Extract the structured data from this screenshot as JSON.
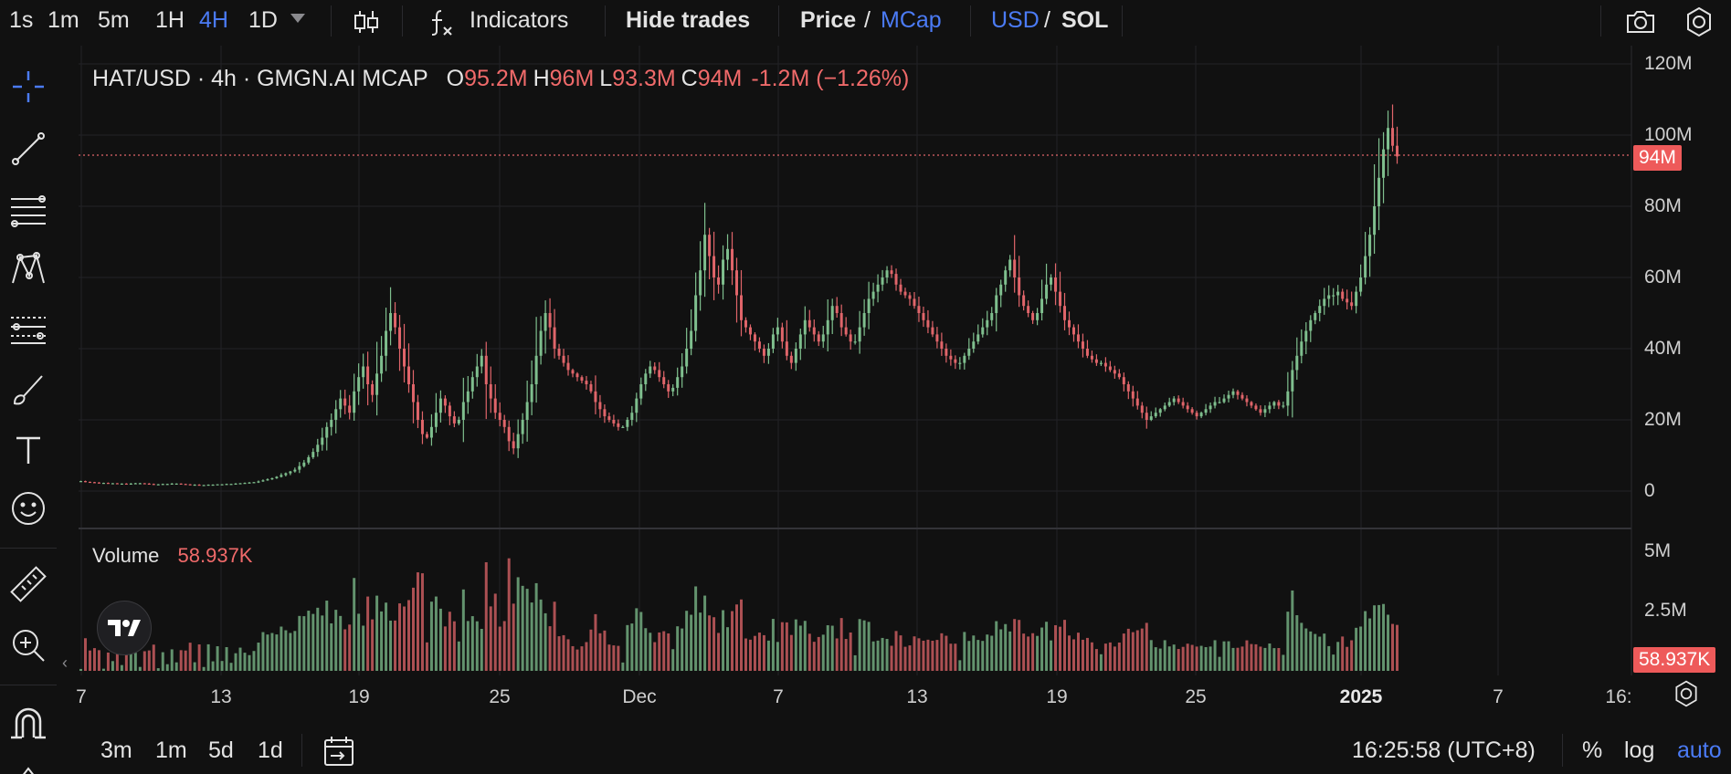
{
  "toolbar": {
    "intervals": [
      "1s",
      "1m",
      "5m",
      "1H",
      "4H",
      "1D"
    ],
    "active_interval": "4H",
    "indicators_label": "Indicators",
    "hide_trades_label": "Hide trades",
    "price_label": "Price",
    "slash": "/",
    "mcap_label": "MCap",
    "usd_label": "USD",
    "sol_label": "SOL"
  },
  "legend": {
    "symbol": "HAT/USD · 4h · GMGN.AI MCAP",
    "o_key": "O",
    "o_val": "95.2M",
    "h_key": "H",
    "h_val": "96M",
    "l_key": "L",
    "l_val": "93.3M",
    "c_key": "C",
    "c_val": "94M",
    "change": "-1.2M (−1.26%)"
  },
  "volume_legend": {
    "label": "Volume",
    "value": "58.937K"
  },
  "price_axis": {
    "labels": [
      "120M",
      "100M",
      "80M",
      "60M",
      "40M",
      "20M",
      "0"
    ],
    "current": "94M"
  },
  "volume_axis": {
    "labels": [
      "5M",
      "2.5M"
    ],
    "current": "58.937K"
  },
  "time_axis": {
    "labels": [
      "7",
      "13",
      "19",
      "25",
      "Dec",
      "7",
      "13",
      "19",
      "25",
      "2025",
      "7",
      "16:"
    ]
  },
  "bottom": {
    "ranges": [
      "3m",
      "1m",
      "5d",
      "1d"
    ],
    "clock": "16:25:58 (UTC+8)",
    "percent_label": "%",
    "log_label": "log",
    "auto_label": "auto"
  },
  "colors": {
    "up": "#7fbf8e",
    "down": "#e0656a",
    "accent": "#4b7bf5",
    "bg": "#111111",
    "grid": "#222226"
  },
  "chart_data": {
    "type": "candlestick",
    "ylim": [
      0,
      120
    ],
    "y_unit": "M",
    "current_close": 94,
    "series": [
      {
        "name": "MCap",
        "close": [
          2.8,
          2.6,
          2.5,
          2.4,
          2.3,
          2.3,
          2.2,
          2.2,
          2.1,
          2.1,
          2.0,
          2.1,
          2.2,
          2.2,
          2.1,
          2.0,
          1.9,
          1.9,
          2.0,
          2.0,
          2.1,
          2.1,
          2.0,
          1.9,
          1.8,
          1.8,
          1.7,
          1.7,
          1.8,
          1.8,
          1.9,
          1.9,
          2.0,
          2.0,
          2.1,
          2.2,
          2.3,
          2.4,
          2.5,
          2.7,
          3.0,
          3.3,
          3.6,
          4.0,
          4.5,
          5.0,
          5.5,
          6.0,
          7.0,
          8.0,
          9.5,
          11,
          13,
          15,
          18,
          20,
          23,
          26,
          24,
          22,
          28,
          32,
          35,
          30,
          27,
          33,
          38,
          45,
          50,
          46,
          40,
          35,
          30,
          25,
          20,
          16,
          15,
          18,
          22,
          26,
          24,
          21,
          19,
          20,
          25,
          28,
          32,
          35,
          38,
          30,
          26,
          22,
          20,
          18,
          14,
          12,
          16,
          20,
          25,
          30,
          38,
          45,
          50,
          46,
          40,
          38,
          36,
          34,
          33,
          32,
          31,
          30,
          28,
          25,
          23,
          21,
          20,
          19,
          18,
          18,
          20,
          22,
          26,
          30,
          33,
          35,
          34,
          32,
          30,
          28,
          29,
          32,
          35,
          40,
          45,
          55,
          62,
          72,
          66,
          60,
          58,
          65,
          68,
          62,
          55,
          48,
          46,
          44,
          42,
          40,
          38,
          40,
          44,
          46,
          42,
          38,
          36,
          40,
          44,
          48,
          46,
          44,
          42,
          44,
          48,
          52,
          50,
          46,
          44,
          42,
          42,
          46,
          50,
          54,
          56,
          58,
          60,
          62,
          61,
          58,
          56,
          55,
          54,
          52,
          50,
          48,
          46,
          44,
          42,
          40,
          38,
          37,
          36,
          36,
          38,
          40,
          42,
          44,
          46,
          48,
          50,
          55,
          58,
          62,
          65,
          60,
          55,
          52,
          50,
          48,
          50,
          54,
          58,
          60,
          56,
          52,
          48,
          46,
          44,
          42,
          40,
          38,
          37,
          36,
          36,
          35,
          34,
          33,
          32,
          30,
          28,
          26,
          24,
          22,
          20,
          21,
          22,
          23,
          24,
          25,
          26,
          25,
          24,
          23,
          22,
          21,
          22,
          23,
          24,
          25,
          25,
          26,
          27,
          28,
          27,
          26,
          25,
          24,
          23,
          22,
          23,
          24,
          25,
          24,
          24,
          28,
          34,
          38,
          42,
          45,
          48,
          50,
          52,
          54,
          55,
          55,
          56,
          54,
          53,
          52,
          56,
          60,
          66,
          72,
          80,
          88,
          96,
          102,
          97,
          94
        ]
      }
    ]
  }
}
